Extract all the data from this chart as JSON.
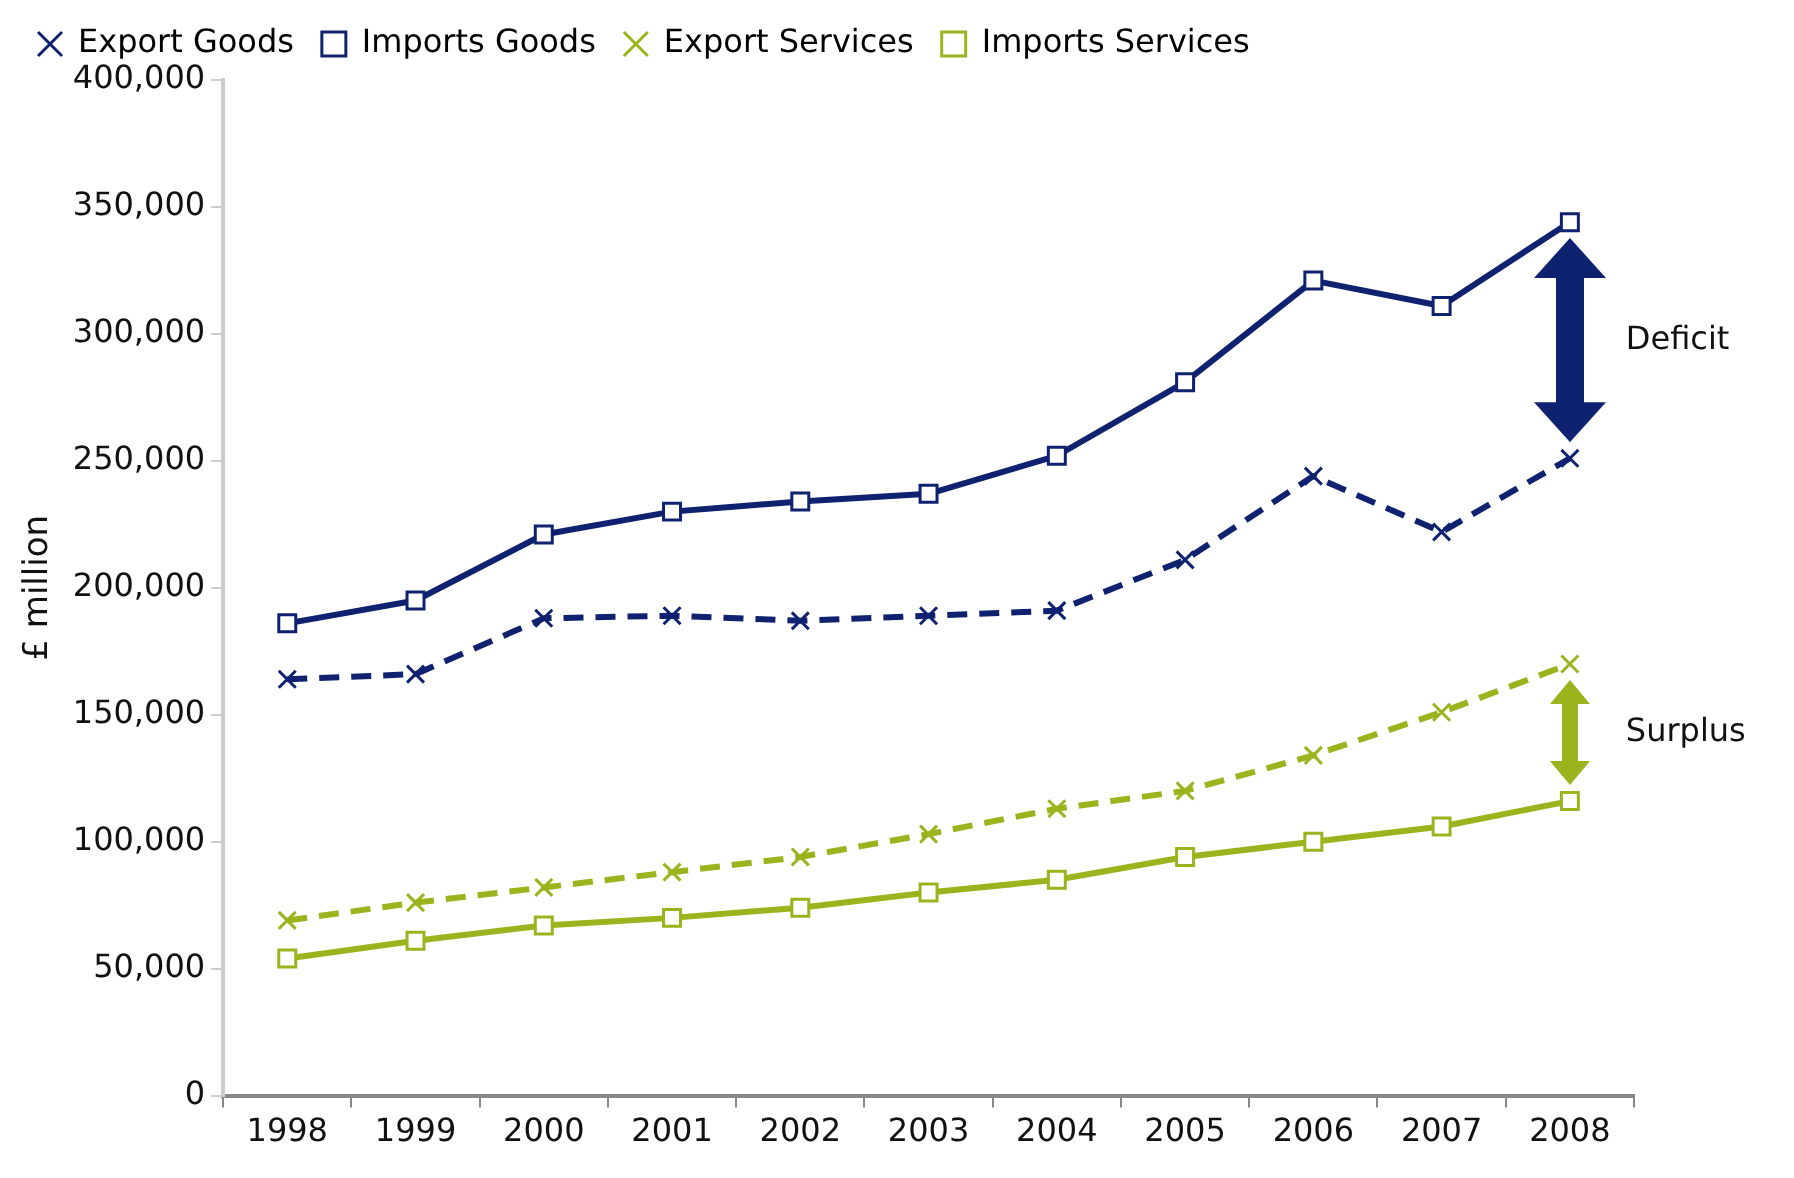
{
  "chart_data": {
    "type": "line",
    "ylabel": "£ million",
    "categories": [
      "1998",
      "1999",
      "2000",
      "2001",
      "2002",
      "2003",
      "2004",
      "2005",
      "2006",
      "2007",
      "2008"
    ],
    "series": [
      {
        "name": "Export Goods",
        "color": "#0f2270",
        "marker": "cross",
        "line_style": "dashed",
        "values": [
          164000,
          166000,
          188000,
          189000,
          187000,
          189000,
          191000,
          211000,
          244000,
          222000,
          251000
        ]
      },
      {
        "name": "Imports Goods",
        "color": "#0f2270",
        "marker": "square",
        "line_style": "solid",
        "values": [
          186000,
          195000,
          221000,
          230000,
          234000,
          237000,
          252000,
          281000,
          321000,
          311000,
          344000
        ]
      },
      {
        "name": "Export Services",
        "color": "#9bb31c",
        "marker": "cross",
        "line_style": "dashed",
        "values": [
          69000,
          76000,
          82000,
          88000,
          94000,
          103000,
          113000,
          120000,
          134000,
          151000,
          170000
        ]
      },
      {
        "name": "Imports Services",
        "color": "#9bb31c",
        "marker": "square",
        "line_style": "solid",
        "values": [
          54000,
          61000,
          67000,
          70000,
          74000,
          80000,
          85000,
          94000,
          100000,
          106000,
          116000
        ]
      }
    ],
    "ylim": [
      0,
      400000
    ],
    "yticks": [
      0,
      {
        "value": 50000,
        "label": "50,000"
      },
      {
        "value": 100000,
        "label": "100,000"
      },
      {
        "value": 150000,
        "label": "150,000"
      },
      {
        "value": 200000,
        "label": "200,000"
      },
      {
        "value": 250000,
        "label": "250,000"
      },
      {
        "value": 300000,
        "label": "300,000"
      },
      {
        "value": 350000,
        "label": "350,000"
      },
      {
        "value": 400000,
        "label": "400,000"
      }
    ],
    "grid": false,
    "legend": "top left",
    "annotations": [
      "Deficit",
      "Surplus"
    ]
  }
}
